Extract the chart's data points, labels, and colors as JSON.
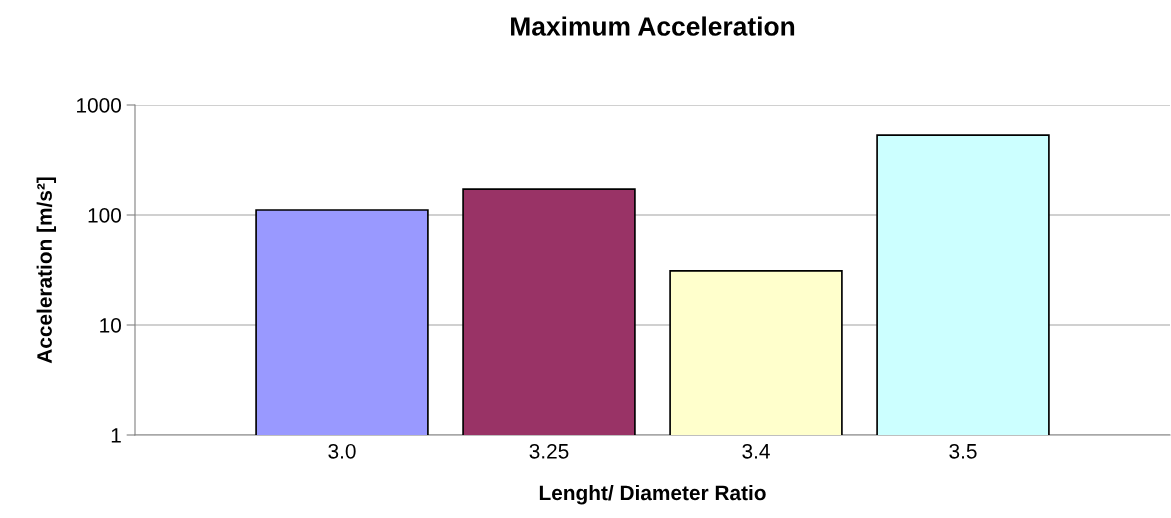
{
  "chart_data": {
    "type": "bar",
    "title": "Maximum Acceleration",
    "xlabel": "Lenght/ Diameter Ratio",
    "ylabel": "Acceleration [m/s²]",
    "categories": [
      "3.0",
      "3.25",
      "3.4",
      "3.5"
    ],
    "values": [
      111,
      172,
      31,
      533
    ],
    "colors": [
      "#9999ff",
      "#993366",
      "#ffffcc",
      "#ccffff"
    ],
    "log": true,
    "ylim": [
      1,
      1000
    ],
    "yticks": [
      1,
      10,
      100,
      1000
    ],
    "grid": "y"
  }
}
